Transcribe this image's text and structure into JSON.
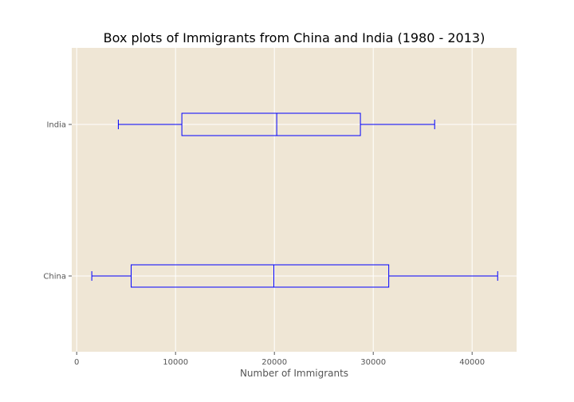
{
  "chart_data": {
    "type": "box",
    "orientation": "horizontal",
    "title": "Box plots of Immigrants from China and India (1980 - 2013)",
    "xlabel": "Number of Immigrants",
    "ylabel": "",
    "xlim": [
      -500,
      44500
    ],
    "x_ticks": [
      0,
      10000,
      20000,
      30000,
      40000
    ],
    "x_tick_labels": [
      "0",
      "10000",
      "20000",
      "30000",
      "40000"
    ],
    "grid": true,
    "series": [
      {
        "name": "China",
        "whisker_low": 1527,
        "q1": 5511,
        "median": 19945,
        "q3": 31568,
        "whisker_high": 42584
      },
      {
        "name": "India",
        "whisker_low": 4211,
        "q1": 10638,
        "median": 20235,
        "q3": 28699,
        "whisker_high": 36210
      }
    ]
  },
  "colors": {
    "plot_background": "#efe6d5",
    "grid": "#ffffff",
    "box_stroke": "#0000ff",
    "tick_text": "#555555",
    "title_text": "#000000"
  }
}
